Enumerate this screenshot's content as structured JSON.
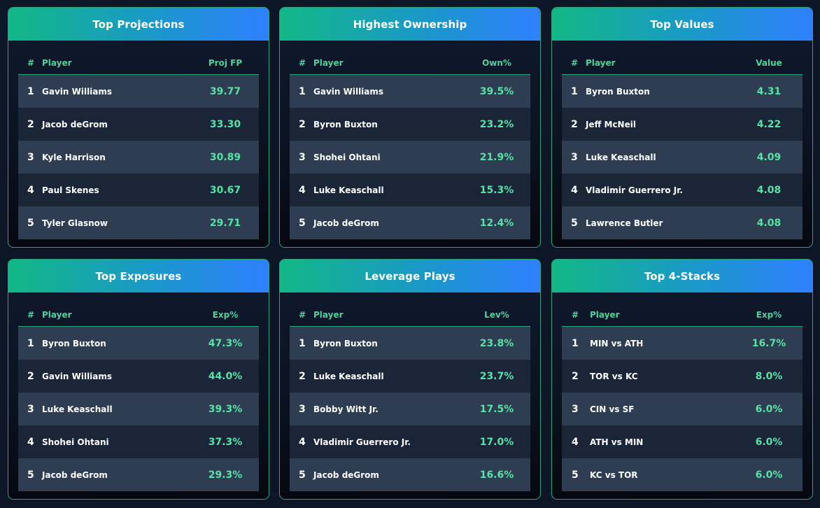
{
  "colors": {
    "accent_green": "#56e3a6",
    "header_gradient_start": "#12b886",
    "header_gradient_end": "#2f80ff",
    "border": "#2ea37c"
  },
  "cards": [
    {
      "title": "Top Projections",
      "columns": {
        "num": "#",
        "player": "Player",
        "value": "Proj FP"
      },
      "rows": [
        {
          "num": "1",
          "player": "Gavin Williams",
          "value": "39.77"
        },
        {
          "num": "2",
          "player": "Jacob deGrom",
          "value": "33.30"
        },
        {
          "num": "3",
          "player": "Kyle Harrison",
          "value": "30.89"
        },
        {
          "num": "4",
          "player": "Paul Skenes",
          "value": "30.67"
        },
        {
          "num": "5",
          "player": "Tyler Glasnow",
          "value": "29.71"
        }
      ]
    },
    {
      "title": "Highest Ownership",
      "columns": {
        "num": "#",
        "player": "Player",
        "value": "Own%"
      },
      "rows": [
        {
          "num": "1",
          "player": "Gavin Williams",
          "value": "39.5%"
        },
        {
          "num": "2",
          "player": "Byron Buxton",
          "value": "23.2%"
        },
        {
          "num": "3",
          "player": "Shohei Ohtani",
          "value": "21.9%"
        },
        {
          "num": "4",
          "player": "Luke Keaschall",
          "value": "15.3%"
        },
        {
          "num": "5",
          "player": "Jacob deGrom",
          "value": "12.4%"
        }
      ]
    },
    {
      "title": "Top Values",
      "columns": {
        "num": "#",
        "player": "Player",
        "value": "Value"
      },
      "rows": [
        {
          "num": "1",
          "player": "Byron Buxton",
          "value": "4.31"
        },
        {
          "num": "2",
          "player": "Jeff McNeil",
          "value": "4.22"
        },
        {
          "num": "3",
          "player": "Luke Keaschall",
          "value": "4.09"
        },
        {
          "num": "4",
          "player": "Vladimir Guerrero Jr.",
          "value": "4.08"
        },
        {
          "num": "5",
          "player": "Lawrence Butler",
          "value": "4.08"
        }
      ]
    },
    {
      "title": "Top Exposures",
      "columns": {
        "num": "#",
        "player": "Player",
        "value": "Exp%"
      },
      "rows": [
        {
          "num": "1",
          "player": "Byron Buxton",
          "value": "47.3%"
        },
        {
          "num": "2",
          "player": "Gavin Williams",
          "value": "44.0%"
        },
        {
          "num": "3",
          "player": "Luke Keaschall",
          "value": "39.3%"
        },
        {
          "num": "4",
          "player": "Shohei Ohtani",
          "value": "37.3%"
        },
        {
          "num": "5",
          "player": "Jacob deGrom",
          "value": "29.3%"
        }
      ]
    },
    {
      "title": "Leverage Plays",
      "columns": {
        "num": "#",
        "player": "Player",
        "value": "Lev%"
      },
      "rows": [
        {
          "num": "1",
          "player": "Byron Buxton",
          "value": "23.8%"
        },
        {
          "num": "2",
          "player": "Luke Keaschall",
          "value": "23.7%"
        },
        {
          "num": "3",
          "player": "Bobby Witt Jr.",
          "value": "17.5%"
        },
        {
          "num": "4",
          "player": "Vladimir Guerrero Jr.",
          "value": "17.0%"
        },
        {
          "num": "5",
          "player": "Jacob deGrom",
          "value": "16.6%"
        }
      ]
    },
    {
      "title": "Top 4-Stacks",
      "columns": {
        "num": "#",
        "player": "Player",
        "value": "Exp%"
      },
      "rows": [
        {
          "num": "1",
          "player": "MIN vs ATH",
          "value": "16.7%"
        },
        {
          "num": "2",
          "player": "TOR vs KC",
          "value": "8.0%"
        },
        {
          "num": "3",
          "player": "CIN vs SF",
          "value": "6.0%"
        },
        {
          "num": "4",
          "player": "ATH vs MIN",
          "value": "6.0%"
        },
        {
          "num": "5",
          "player": "KC vs TOR",
          "value": "6.0%"
        }
      ]
    }
  ]
}
